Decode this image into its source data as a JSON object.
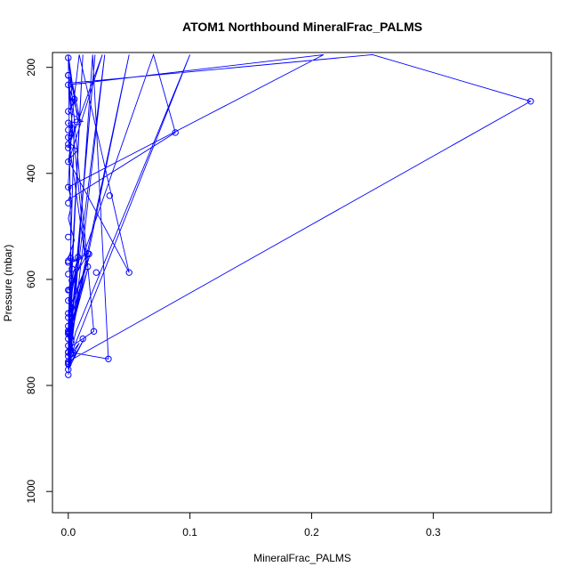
{
  "chart_data": {
    "type": "scatter",
    "title": "ATOM1 Northbound MineralFrac_PALMS",
    "xlabel": "MineralFrac_PALMS",
    "ylabel": "Pressure (mbar)",
    "xlim": [
      -0.013,
      0.397
    ],
    "ylim": [
      1040,
      172
    ],
    "y_reversed": true,
    "xticks": [
      0.0,
      0.1,
      0.2,
      0.3
    ],
    "xtick_labels": [
      "0.0",
      "0.1",
      "0.2",
      "0.3"
    ],
    "yticks": [
      200,
      400,
      600,
      800,
      1000
    ],
    "ytick_labels": [
      "200",
      "400",
      "600",
      "800",
      "1000"
    ],
    "grid": false,
    "legend": "none",
    "color": "#0000ff",
    "series": [
      {
        "style": "line-with-points",
        "x": [
          0.0,
          0.005,
          0.0,
          0.008,
          0.002,
          0.0,
          0.01,
          0.0,
          0.003,
          0.0,
          0.006,
          0.0,
          0.012,
          0.0,
          0.004,
          0.0,
          0.008,
          0.0,
          0.05,
          0.009,
          0.0,
          0.028,
          0.0,
          0.004,
          0.0,
          0.015,
          0.0,
          0.21,
          0.0,
          0.003,
          0.0,
          0.005,
          0.0,
          0.007,
          0.0,
          0.016,
          0.004,
          0.0,
          0.008,
          0.0,
          0.006,
          0.0,
          0.003,
          0.0,
          0.002,
          0.0,
          0.001,
          0.0,
          0.004,
          0.0,
          0.003,
          0.0,
          0.001,
          0.0,
          0.1,
          0.006,
          0.0,
          0.009,
          0.003,
          0.033,
          0.02,
          0.004,
          0.0,
          0.013,
          0.0,
          0.009,
          0.0,
          0.03,
          0.0,
          0.001,
          0.0,
          0.022,
          0.0,
          0.008,
          0.0,
          0.004,
          0.0,
          0.002,
          0.0,
          0.001,
          0.0,
          0.003,
          0.0,
          0.004,
          0.0,
          0.002,
          0.0,
          0.004,
          0.0,
          0.005,
          0.0,
          0.012,
          0.0,
          0.001,
          0.0,
          0.012,
          0.0,
          0.021,
          0.0,
          0.003,
          0.0,
          0.38,
          0.25,
          0.0,
          0.003,
          0.0,
          0.002,
          0.0,
          0.088,
          0.07,
          0.003,
          0.0,
          0.004,
          0.0,
          0.018,
          0.0,
          0.005,
          0.0,
          0.016,
          0.0,
          0.05,
          0.0
        ],
        "y": [
          176,
          258,
          180,
          302,
          216,
          193,
          303,
          233,
          280,
          215,
          260,
          283,
          302,
          305,
          326,
          340,
          356,
          375,
          587,
          176,
          352,
          176,
          380,
          308,
          330,
          576,
          233,
          176,
          426,
          456,
          485,
          526,
          560,
          564,
          570,
          551,
          600,
          620,
          560,
          664,
          580,
          668,
          624,
          700,
          605,
          712,
          680,
          725,
          640,
          737,
          700,
          745,
          690,
          755,
          176,
          700,
          760,
          720,
          738,
          750,
          176,
          700,
          765,
          712,
          770,
          600,
          780,
          176,
          725,
          700,
          745,
          176,
          760,
          550,
          770,
          587,
          700,
          680,
          725,
          700,
          738,
          710,
          755,
          672,
          758,
          690,
          700,
          738,
          676,
          720,
          660,
          590,
          740,
          610,
          700,
          176,
          730,
          698,
          176,
          700,
          755,
          264,
          176,
          230,
          300,
          420,
          440,
          450,
          323,
          176,
          616,
          640,
          650,
          670,
          552,
          690,
          310,
          700,
          580,
          720,
          176,
          736
        ]
      }
    ],
    "points": {
      "x": [
        0.38,
        0.088,
        0.05,
        0.034,
        0.033,
        0.023,
        0.021,
        0.016,
        0.017,
        0.016,
        0.012,
        0.008,
        0.007,
        0.005,
        0.004,
        0.003,
        0.003,
        0.003,
        0.002,
        0.002,
        0.001,
        0.001,
        0.0,
        0.0,
        0.0,
        0.0,
        0.0,
        0.0,
        0.0,
        0.0,
        0.0,
        0.0,
        0.0,
        0.0,
        0.0,
        0.0,
        0.0,
        0.0,
        0.0,
        0.0,
        0.0,
        0.0,
        0.0,
        0.0,
        0.0,
        0.0,
        0.0,
        0.0,
        0.0,
        0.0,
        0.0,
        0.0,
        0.0,
        0.0,
        0.0,
        0.0,
        0.0
      ],
      "y": [
        264,
        323,
        587,
        442,
        750,
        587,
        698,
        551,
        552,
        576,
        712,
        558,
        303,
        260,
        738,
        740,
        602,
        580,
        738,
        560,
        620,
        700,
        182,
        215,
        233,
        283,
        305,
        318,
        332,
        345,
        352,
        378,
        426,
        456,
        520,
        565,
        620,
        664,
        672,
        700,
        712,
        725,
        737,
        745,
        755,
        760,
        770,
        780,
        215,
        590,
        640,
        568,
        697,
        738,
        758,
        688,
        703
      ]
    }
  }
}
